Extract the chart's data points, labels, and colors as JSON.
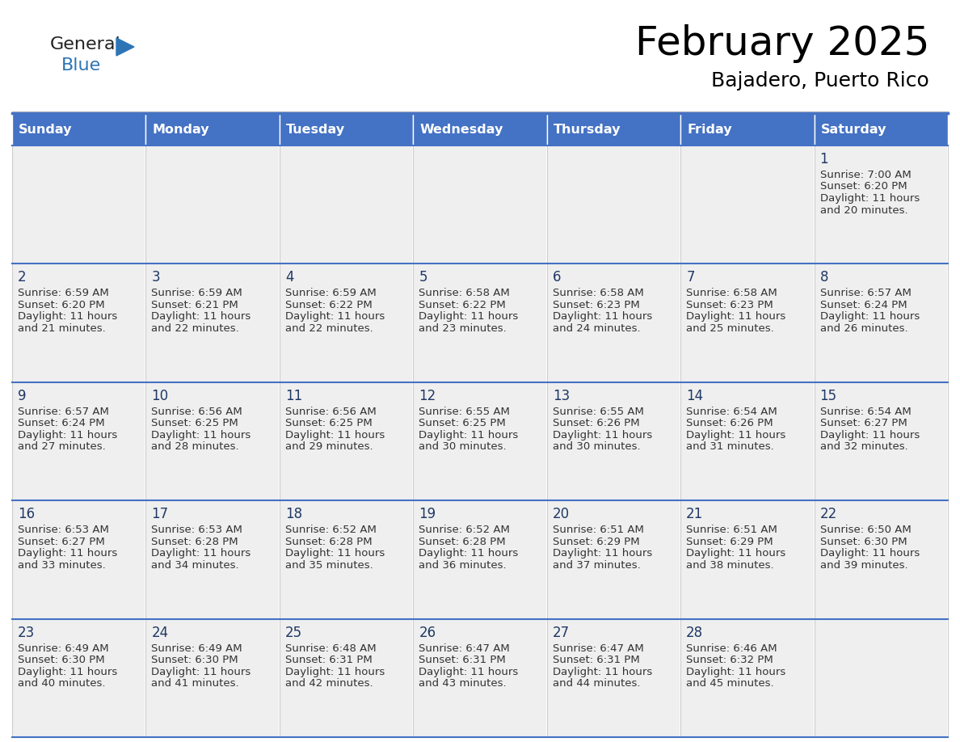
{
  "title": "February 2025",
  "subtitle": "Bajadero, Puerto Rico",
  "header_bg_color": "#4472C4",
  "header_text_color": "#FFFFFF",
  "cell_bg_color": "#EFEFEF",
  "border_color": "#4472C4",
  "text_color": "#333333",
  "day_num_color": "#1F3864",
  "logo_general_color": "#222222",
  "logo_blue_color": "#2E75B6",
  "day_headers": [
    "Sunday",
    "Monday",
    "Tuesday",
    "Wednesday",
    "Thursday",
    "Friday",
    "Saturday"
  ],
  "calendar_data": [
    [
      {
        "day": null,
        "sunrise": null,
        "sunset": null,
        "daylight_line1": null,
        "daylight_line2": null
      },
      {
        "day": null,
        "sunrise": null,
        "sunset": null,
        "daylight_line1": null,
        "daylight_line2": null
      },
      {
        "day": null,
        "sunrise": null,
        "sunset": null,
        "daylight_line1": null,
        "daylight_line2": null
      },
      {
        "day": null,
        "sunrise": null,
        "sunset": null,
        "daylight_line1": null,
        "daylight_line2": null
      },
      {
        "day": null,
        "sunrise": null,
        "sunset": null,
        "daylight_line1": null,
        "daylight_line2": null
      },
      {
        "day": null,
        "sunrise": null,
        "sunset": null,
        "daylight_line1": null,
        "daylight_line2": null
      },
      {
        "day": 1,
        "sunrise": "Sunrise: 7:00 AM",
        "sunset": "Sunset: 6:20 PM",
        "daylight_line1": "Daylight: 11 hours",
        "daylight_line2": "and 20 minutes."
      }
    ],
    [
      {
        "day": 2,
        "sunrise": "Sunrise: 6:59 AM",
        "sunset": "Sunset: 6:20 PM",
        "daylight_line1": "Daylight: 11 hours",
        "daylight_line2": "and 21 minutes."
      },
      {
        "day": 3,
        "sunrise": "Sunrise: 6:59 AM",
        "sunset": "Sunset: 6:21 PM",
        "daylight_line1": "Daylight: 11 hours",
        "daylight_line2": "and 22 minutes."
      },
      {
        "day": 4,
        "sunrise": "Sunrise: 6:59 AM",
        "sunset": "Sunset: 6:22 PM",
        "daylight_line1": "Daylight: 11 hours",
        "daylight_line2": "and 22 minutes."
      },
      {
        "day": 5,
        "sunrise": "Sunrise: 6:58 AM",
        "sunset": "Sunset: 6:22 PM",
        "daylight_line1": "Daylight: 11 hours",
        "daylight_line2": "and 23 minutes."
      },
      {
        "day": 6,
        "sunrise": "Sunrise: 6:58 AM",
        "sunset": "Sunset: 6:23 PM",
        "daylight_line1": "Daylight: 11 hours",
        "daylight_line2": "and 24 minutes."
      },
      {
        "day": 7,
        "sunrise": "Sunrise: 6:58 AM",
        "sunset": "Sunset: 6:23 PM",
        "daylight_line1": "Daylight: 11 hours",
        "daylight_line2": "and 25 minutes."
      },
      {
        "day": 8,
        "sunrise": "Sunrise: 6:57 AM",
        "sunset": "Sunset: 6:24 PM",
        "daylight_line1": "Daylight: 11 hours",
        "daylight_line2": "and 26 minutes."
      }
    ],
    [
      {
        "day": 9,
        "sunrise": "Sunrise: 6:57 AM",
        "sunset": "Sunset: 6:24 PM",
        "daylight_line1": "Daylight: 11 hours",
        "daylight_line2": "and 27 minutes."
      },
      {
        "day": 10,
        "sunrise": "Sunrise: 6:56 AM",
        "sunset": "Sunset: 6:25 PM",
        "daylight_line1": "Daylight: 11 hours",
        "daylight_line2": "and 28 minutes."
      },
      {
        "day": 11,
        "sunrise": "Sunrise: 6:56 AM",
        "sunset": "Sunset: 6:25 PM",
        "daylight_line1": "Daylight: 11 hours",
        "daylight_line2": "and 29 minutes."
      },
      {
        "day": 12,
        "sunrise": "Sunrise: 6:55 AM",
        "sunset": "Sunset: 6:25 PM",
        "daylight_line1": "Daylight: 11 hours",
        "daylight_line2": "and 30 minutes."
      },
      {
        "day": 13,
        "sunrise": "Sunrise: 6:55 AM",
        "sunset": "Sunset: 6:26 PM",
        "daylight_line1": "Daylight: 11 hours",
        "daylight_line2": "and 30 minutes."
      },
      {
        "day": 14,
        "sunrise": "Sunrise: 6:54 AM",
        "sunset": "Sunset: 6:26 PM",
        "daylight_line1": "Daylight: 11 hours",
        "daylight_line2": "and 31 minutes."
      },
      {
        "day": 15,
        "sunrise": "Sunrise: 6:54 AM",
        "sunset": "Sunset: 6:27 PM",
        "daylight_line1": "Daylight: 11 hours",
        "daylight_line2": "and 32 minutes."
      }
    ],
    [
      {
        "day": 16,
        "sunrise": "Sunrise: 6:53 AM",
        "sunset": "Sunset: 6:27 PM",
        "daylight_line1": "Daylight: 11 hours",
        "daylight_line2": "and 33 minutes."
      },
      {
        "day": 17,
        "sunrise": "Sunrise: 6:53 AM",
        "sunset": "Sunset: 6:28 PM",
        "daylight_line1": "Daylight: 11 hours",
        "daylight_line2": "and 34 minutes."
      },
      {
        "day": 18,
        "sunrise": "Sunrise: 6:52 AM",
        "sunset": "Sunset: 6:28 PM",
        "daylight_line1": "Daylight: 11 hours",
        "daylight_line2": "and 35 minutes."
      },
      {
        "day": 19,
        "sunrise": "Sunrise: 6:52 AM",
        "sunset": "Sunset: 6:28 PM",
        "daylight_line1": "Daylight: 11 hours",
        "daylight_line2": "and 36 minutes."
      },
      {
        "day": 20,
        "sunrise": "Sunrise: 6:51 AM",
        "sunset": "Sunset: 6:29 PM",
        "daylight_line1": "Daylight: 11 hours",
        "daylight_line2": "and 37 minutes."
      },
      {
        "day": 21,
        "sunrise": "Sunrise: 6:51 AM",
        "sunset": "Sunset: 6:29 PM",
        "daylight_line1": "Daylight: 11 hours",
        "daylight_line2": "and 38 minutes."
      },
      {
        "day": 22,
        "sunrise": "Sunrise: 6:50 AM",
        "sunset": "Sunset: 6:30 PM",
        "daylight_line1": "Daylight: 11 hours",
        "daylight_line2": "and 39 minutes."
      }
    ],
    [
      {
        "day": 23,
        "sunrise": "Sunrise: 6:49 AM",
        "sunset": "Sunset: 6:30 PM",
        "daylight_line1": "Daylight: 11 hours",
        "daylight_line2": "and 40 minutes."
      },
      {
        "day": 24,
        "sunrise": "Sunrise: 6:49 AM",
        "sunset": "Sunset: 6:30 PM",
        "daylight_line1": "Daylight: 11 hours",
        "daylight_line2": "and 41 minutes."
      },
      {
        "day": 25,
        "sunrise": "Sunrise: 6:48 AM",
        "sunset": "Sunset: 6:31 PM",
        "daylight_line1": "Daylight: 11 hours",
        "daylight_line2": "and 42 minutes."
      },
      {
        "day": 26,
        "sunrise": "Sunrise: 6:47 AM",
        "sunset": "Sunset: 6:31 PM",
        "daylight_line1": "Daylight: 11 hours",
        "daylight_line2": "and 43 minutes."
      },
      {
        "day": 27,
        "sunrise": "Sunrise: 6:47 AM",
        "sunset": "Sunset: 6:31 PM",
        "daylight_line1": "Daylight: 11 hours",
        "daylight_line2": "and 44 minutes."
      },
      {
        "day": 28,
        "sunrise": "Sunrise: 6:46 AM",
        "sunset": "Sunset: 6:32 PM",
        "daylight_line1": "Daylight: 11 hours",
        "daylight_line2": "and 45 minutes."
      },
      {
        "day": null,
        "sunrise": null,
        "sunset": null,
        "daylight_line1": null,
        "daylight_line2": null
      }
    ]
  ]
}
